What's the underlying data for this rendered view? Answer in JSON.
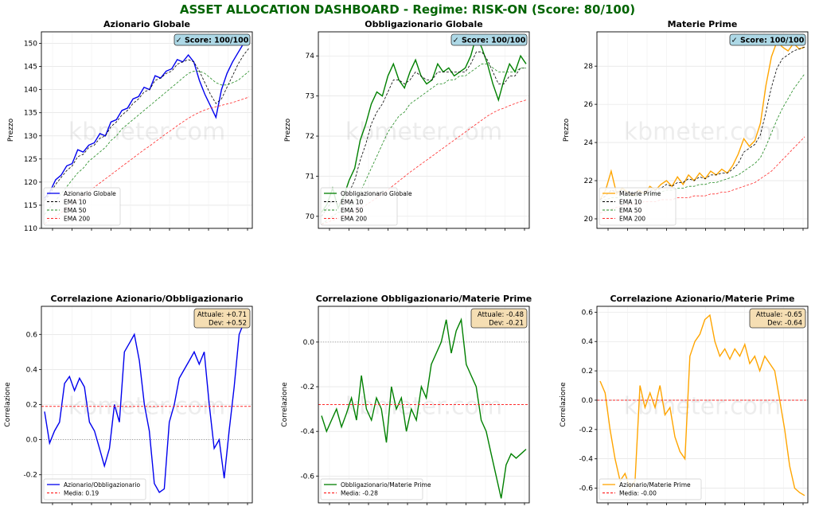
{
  "page_title": "ASSET ALLOCATION DASHBOARD - Regime: RISK-ON  (Score: 80/100)",
  "watermark": "kbmeter.com",
  "colors": {
    "title": "#006400",
    "blue": "#0000ee",
    "green": "#008000",
    "orange": "#ffa500",
    "ema10": "#000000",
    "ema50": "#228b22",
    "ema200": "#ff2a2a",
    "badge_fill": "#add8e6",
    "stats_fill": "#f5deb3"
  },
  "chart_data": [
    {
      "type": "line",
      "title": "Azionario Globale",
      "ylabel": "Prezzo",
      "xlabel": "",
      "ylim": [
        110,
        152.5
      ],
      "yticks": [
        110,
        115,
        120,
        125,
        130,
        135,
        140,
        145,
        150
      ],
      "badge": "✓ Score: 100/100",
      "grid": true,
      "legend_position": "bottom-left",
      "series": [
        {
          "name": "Azionario Globale",
          "role": "price",
          "y": [
            116.5,
            118,
            120.5,
            121.5,
            123.5,
            124,
            127,
            126.5,
            128,
            128.5,
            130.5,
            130,
            133,
            133.5,
            135.5,
            136,
            138,
            138.5,
            140.5,
            140,
            143,
            142.5,
            144,
            144.5,
            146.5,
            146,
            147.5,
            146,
            142,
            139,
            136.5,
            134,
            140,
            143.5,
            146,
            148,
            150,
            151.5
          ]
        },
        {
          "name": "EMA 10",
          "role": "ema10",
          "y": [
            116,
            117.5,
            119.5,
            121,
            122.5,
            123.5,
            125.5,
            126,
            127.5,
            128,
            129.5,
            130,
            132,
            133,
            134.5,
            135.5,
            137,
            138,
            139.5,
            140,
            142,
            142.5,
            143.5,
            144,
            145.5,
            146,
            146.5,
            146,
            144,
            141.5,
            139,
            137,
            138,
            140.5,
            143,
            145.5,
            147.5,
            149
          ]
        },
        {
          "name": "EMA 50",
          "role": "ema50",
          "y": [
            113,
            114.5,
            116,
            117.5,
            119,
            120.5,
            122,
            123,
            124.5,
            125.5,
            126.5,
            127.5,
            129,
            130,
            131.5,
            132.5,
            133.5,
            134.5,
            135.5,
            136.5,
            137.5,
            138.5,
            139.5,
            140.5,
            141.5,
            142.5,
            143.5,
            144,
            144,
            143.5,
            142.5,
            141.5,
            141,
            141,
            141.5,
            142,
            143,
            144
          ]
        },
        {
          "name": "EMA 200",
          "role": "ema200",
          "y": [
            111,
            111.8,
            112.6,
            113.4,
            114.3,
            115.2,
            116.1,
            117,
            118,
            118.9,
            119.8,
            120.7,
            121.6,
            122.5,
            123.4,
            124.3,
            125.2,
            126.1,
            127,
            127.8,
            128.7,
            129.6,
            130.5,
            131.3,
            132.2,
            133,
            133.8,
            134.5,
            135.1,
            135.6,
            136,
            136.3,
            136.6,
            136.9,
            137.2,
            137.6,
            138,
            138.4
          ]
        }
      ]
    },
    {
      "type": "line",
      "title": "Obbligazionario Globale",
      "ylabel": "Prezzo",
      "xlabel": "",
      "ylim": [
        69.7,
        74.6
      ],
      "yticks": [
        70,
        71,
        72,
        73,
        74
      ],
      "badge": "✓ Score: 100/100",
      "grid": true,
      "legend_position": "bottom-left",
      "series": [
        {
          "name": "Obbligazionario Globale",
          "role": "price",
          "y": [
            70.1,
            70.3,
            70.7,
            70.2,
            70.5,
            70.9,
            71.2,
            71.9,
            72.3,
            72.8,
            73.1,
            73,
            73.5,
            73.8,
            73.4,
            73.2,
            73.6,
            73.9,
            73.5,
            73.3,
            73.4,
            73.8,
            73.6,
            73.7,
            73.5,
            73.6,
            73.7,
            74,
            74.5,
            74.2,
            73.8,
            73.3,
            72.9,
            73.4,
            73.8,
            73.6,
            74,
            73.8
          ]
        },
        {
          "name": "EMA 10",
          "role": "ema10",
          "y": [
            70,
            70.2,
            70.4,
            70.3,
            70.4,
            70.6,
            70.9,
            71.4,
            71.8,
            72.3,
            72.6,
            72.8,
            73.1,
            73.4,
            73.4,
            73.3,
            73.4,
            73.6,
            73.5,
            73.4,
            73.4,
            73.6,
            73.6,
            73.6,
            73.6,
            73.6,
            73.6,
            73.8,
            74.1,
            74.1,
            73.9,
            73.6,
            73.3,
            73.3,
            73.5,
            73.5,
            73.7,
            73.7
          ]
        },
        {
          "name": "EMA 50",
          "role": "ema50",
          "y": [
            69.8,
            69.9,
            70,
            70.1,
            70.1,
            70.2,
            70.4,
            70.6,
            70.9,
            71.2,
            71.5,
            71.8,
            72.1,
            72.3,
            72.5,
            72.6,
            72.8,
            72.9,
            73,
            73.1,
            73.2,
            73.3,
            73.3,
            73.4,
            73.4,
            73.5,
            73.5,
            73.6,
            73.7,
            73.8,
            73.8,
            73.7,
            73.6,
            73.6,
            73.6,
            73.6,
            73.7,
            73.7
          ]
        },
        {
          "name": "EMA 200",
          "role": "ema200",
          "y": [
            69.8,
            69.85,
            69.9,
            69.95,
            70,
            70.06,
            70.12,
            70.2,
            70.28,
            70.37,
            70.46,
            70.56,
            70.66,
            70.77,
            70.88,
            70.99,
            71.1,
            71.2,
            71.3,
            71.4,
            71.5,
            71.6,
            71.7,
            71.8,
            71.9,
            72,
            72.1,
            72.2,
            72.3,
            72.4,
            72.5,
            72.58,
            72.65,
            72.7,
            72.76,
            72.81,
            72.86,
            72.9
          ]
        }
      ]
    },
    {
      "type": "line",
      "title": "Materie Prime",
      "ylabel": "Prezzo",
      "xlabel": "",
      "ylim": [
        19.5,
        29.8
      ],
      "yticks": [
        20,
        22,
        24,
        26,
        28
      ],
      "badge": "✓ Score: 100/100",
      "grid": true,
      "legend_position": "bottom-left",
      "series": [
        {
          "name": "Materie Prime",
          "role": "price",
          "y": [
            21,
            21.5,
            22.5,
            21.3,
            21.6,
            21.4,
            21.2,
            21.5,
            21.3,
            21.7,
            21.5,
            21.8,
            22,
            21.7,
            22.2,
            21.8,
            22.3,
            22,
            22.4,
            22.1,
            22.5,
            22.3,
            22.6,
            22.4,
            22.8,
            23.4,
            24.2,
            23.8,
            24.1,
            25,
            27,
            28.5,
            29.3,
            29,
            28.8,
            29.2,
            28.9,
            29
          ]
        },
        {
          "name": "EMA 10",
          "role": "ema10",
          "y": [
            21,
            21.2,
            21.5,
            21.4,
            21.5,
            21.4,
            21.3,
            21.4,
            21.4,
            21.5,
            21.5,
            21.6,
            21.8,
            21.7,
            21.9,
            21.9,
            22.1,
            22,
            22.2,
            22.1,
            22.3,
            22.3,
            22.4,
            22.4,
            22.6,
            22.9,
            23.5,
            23.7,
            23.9,
            24.4,
            25.6,
            26.9,
            27.9,
            28.4,
            28.6,
            28.8,
            28.9,
            29
          ]
        },
        {
          "name": "EMA 50",
          "role": "ema50",
          "y": [
            20.9,
            21,
            21.1,
            21.1,
            21.2,
            21.2,
            21.2,
            21.2,
            21.3,
            21.3,
            21.3,
            21.4,
            21.5,
            21.5,
            21.6,
            21.6,
            21.7,
            21.7,
            21.8,
            21.8,
            21.9,
            21.9,
            22,
            22.1,
            22.2,
            22.3,
            22.5,
            22.7,
            22.9,
            23.2,
            23.8,
            24.5,
            25.2,
            25.8,
            26.3,
            26.8,
            27.2,
            27.6
          ]
        },
        {
          "name": "EMA 200",
          "role": "ema200",
          "y": [
            20.3,
            20.4,
            20.5,
            20.6,
            20.7,
            20.7,
            20.8,
            20.8,
            20.9,
            20.9,
            20.9,
            21,
            21,
            21,
            21.1,
            21.1,
            21.1,
            21.2,
            21.2,
            21.2,
            21.3,
            21.3,
            21.4,
            21.4,
            21.5,
            21.6,
            21.7,
            21.8,
            21.9,
            22.1,
            22.3,
            22.5,
            22.8,
            23.1,
            23.4,
            23.7,
            24,
            24.3
          ]
        }
      ]
    },
    {
      "type": "line",
      "title": "Correlazione Azionario/Obbligazionario",
      "ylabel": "Correlazione",
      "xlabel": "",
      "ylim": [
        -0.36,
        0.76
      ],
      "yticks": [
        -0.2,
        0.0,
        0.2,
        0.4,
        0.6
      ],
      "stats": [
        "Attuale: +0.71",
        "Dev: +0.52"
      ],
      "mean": 0.19,
      "grid": true,
      "legend_position": "bottom-left",
      "series": [
        {
          "name": "Azionario/Obbligazionario",
          "role": "corr",
          "y": [
            0.16,
            -0.02,
            0.05,
            0.1,
            0.32,
            0.36,
            0.28,
            0.35,
            0.3,
            0.1,
            0.05,
            -0.05,
            -0.15,
            -0.05,
            0.2,
            0.1,
            0.5,
            0.55,
            0.6,
            0.45,
            0.2,
            0.05,
            -0.25,
            -0.3,
            -0.28,
            0.1,
            0.2,
            0.35,
            0.4,
            0.45,
            0.5,
            0.43,
            0.5,
            0.2,
            -0.05,
            0,
            -0.22,
            0.05,
            0.3,
            0.6,
            0.67,
            0.71
          ]
        },
        {
          "name": "Media: 0.19",
          "role": "mean",
          "y": []
        }
      ]
    },
    {
      "type": "line",
      "title": "Correlazione Obbligazionario/Materie Prime",
      "ylabel": "Correlazione",
      "xlabel": "",
      "ylim": [
        -0.72,
        0.16
      ],
      "yticks": [
        -0.6,
        -0.4,
        -0.2,
        0.0
      ],
      "stats": [
        "Attuale: -0.48",
        "Dev: -0.21"
      ],
      "mean": -0.28,
      "grid": true,
      "legend_position": "bottom-left",
      "series": [
        {
          "name": "Obbligazionario/Materie Prime",
          "role": "corr",
          "y": [
            -0.33,
            -0.4,
            -0.35,
            -0.3,
            -0.38,
            -0.32,
            -0.25,
            -0.35,
            -0.15,
            -0.3,
            -0.35,
            -0.25,
            -0.3,
            -0.45,
            -0.2,
            -0.3,
            -0.25,
            -0.4,
            -0.3,
            -0.35,
            -0.2,
            -0.25,
            -0.1,
            -0.05,
            0,
            0.1,
            -0.05,
            0.05,
            0.1,
            -0.1,
            -0.15,
            -0.2,
            -0.35,
            -0.4,
            -0.5,
            -0.6,
            -0.7,
            -0.55,
            -0.5,
            -0.52,
            -0.5,
            -0.48
          ]
        },
        {
          "name": "Media: -0.28",
          "role": "mean",
          "y": []
        }
      ]
    },
    {
      "type": "line",
      "title": "Correlazione Azionario/Materie Prime",
      "ylabel": "Correlazione",
      "xlabel": "",
      "ylim": [
        -0.7,
        0.64
      ],
      "yticks": [
        -0.6,
        -0.4,
        -0.2,
        0.0,
        0.2,
        0.4,
        0.6
      ],
      "stats": [
        "Attuale: -0.65",
        "Dev: -0.64"
      ],
      "mean": -0.0,
      "grid": true,
      "legend_position": "bottom-left",
      "series": [
        {
          "name": "Azionario/Materie Prime",
          "role": "corr",
          "y": [
            0.13,
            0.05,
            -0.2,
            -0.4,
            -0.55,
            -0.5,
            -0.6,
            -0.55,
            0.1,
            -0.05,
            0.05,
            -0.05,
            0.1,
            -0.1,
            -0.05,
            -0.25,
            -0.35,
            -0.4,
            0.3,
            0.4,
            0.45,
            0.55,
            0.58,
            0.4,
            0.3,
            0.35,
            0.28,
            0.35,
            0.3,
            0.38,
            0.25,
            0.3,
            0.2,
            0.3,
            0.25,
            0.2,
            0,
            -0.2,
            -0.45,
            -0.6,
            -0.63,
            -0.65
          ]
        },
        {
          "name": "Media: -0.00",
          "role": "mean",
          "y": []
        }
      ]
    }
  ]
}
